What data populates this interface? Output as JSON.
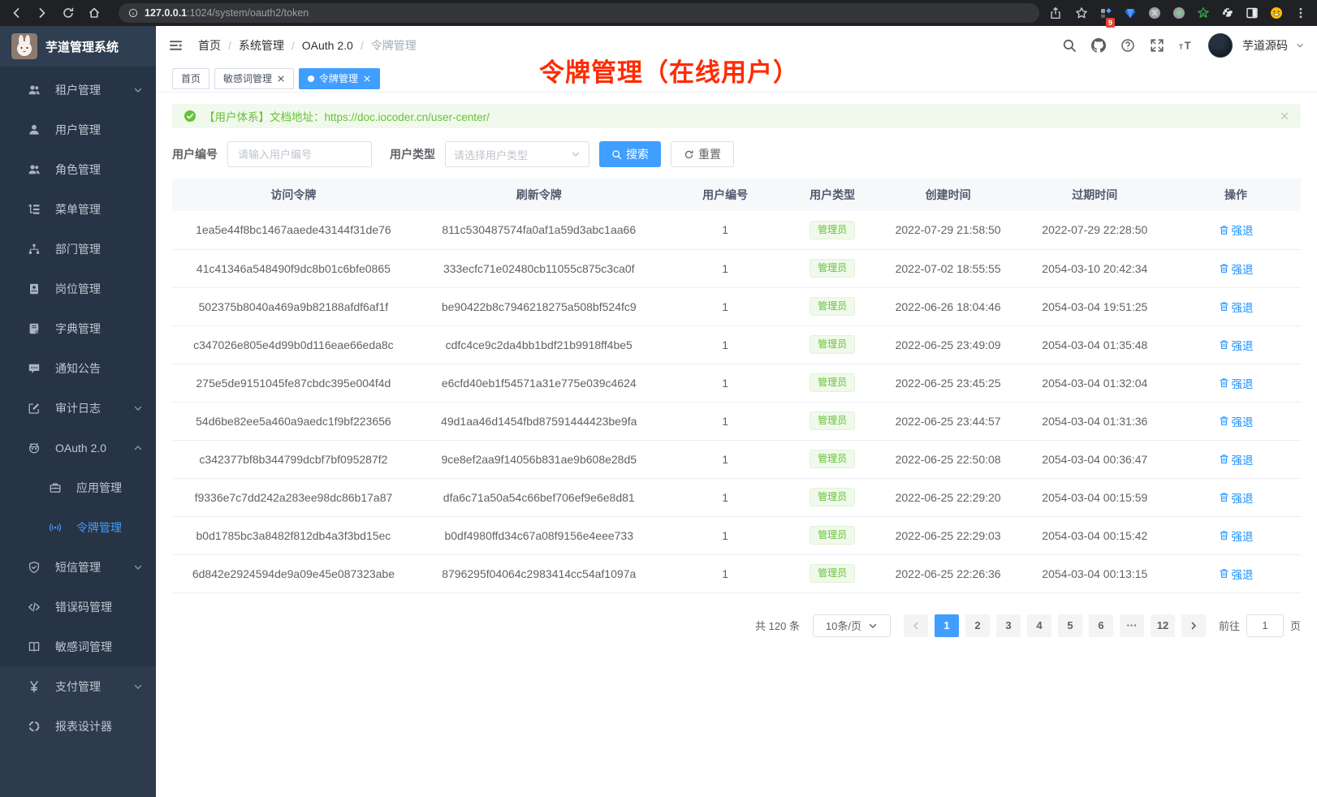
{
  "colors": {
    "accent": "#409eff",
    "success": "#67c23a",
    "link_blue": "#1890ff",
    "annotation_red": "#ff2b00",
    "sidebar_bg": "#273445"
  },
  "browser": {
    "url_host": "127.0.0.1",
    "url_path": ":1024/system/oauth2/token",
    "nav_icons": [
      "back-icon",
      "forward-icon",
      "reload-icon",
      "home-icon"
    ],
    "action_icons": [
      "share-icon",
      "star-icon"
    ],
    "extensions": [
      "extension-blocks-icon",
      "gem-icon",
      "command-circle-icon",
      "record-circle-icon",
      "green-star-icon",
      "puzzle-icon",
      "panel-icon",
      "smiley-icon"
    ],
    "extensions_badge": "9"
  },
  "sidebar": {
    "title": "芋道管理系统",
    "items": [
      {
        "label": "租户管理",
        "icon": "tenant-users-icon",
        "chevron": "chevron-down-icon"
      },
      {
        "label": "用户管理",
        "icon": "user-icon"
      },
      {
        "label": "角色管理",
        "icon": "role-users-icon"
      },
      {
        "label": "菜单管理",
        "icon": "menu-list-icon"
      },
      {
        "label": "部门管理",
        "icon": "dept-tree-icon"
      },
      {
        "label": "岗位管理",
        "icon": "post-badge-icon"
      },
      {
        "label": "字典管理",
        "icon": "dict-book-icon"
      },
      {
        "label": "通知公告",
        "icon": "notice-message-icon"
      },
      {
        "label": "审计日志",
        "icon": "audit-log-icon",
        "chevron": "chevron-down-icon"
      },
      {
        "label": "OAuth 2.0",
        "icon": "oauth-robot-icon",
        "chevron": "chevron-up-icon"
      },
      {
        "label": "应用管理",
        "icon": "app-briefcase-icon",
        "sub": true
      },
      {
        "label": "令牌管理",
        "icon": "token-broadcast-icon",
        "sub": true,
        "active": true
      },
      {
        "label": "短信管理",
        "icon": "sms-shield-icon",
        "chevron": "chevron-down-icon"
      },
      {
        "label": "错误码管理",
        "icon": "error-code-icon"
      },
      {
        "label": "敏感词管理",
        "icon": "sensitive-book-icon"
      },
      {
        "label": "支付管理",
        "icon": "payment-yen-icon",
        "chevron": "chevron-down-icon",
        "light": true
      },
      {
        "label": "报表设计器",
        "icon": "report-designer-icon",
        "light": true
      }
    ]
  },
  "navbar": {
    "breadcrumb": [
      "首页",
      "系统管理",
      "OAuth 2.0",
      "令牌管理"
    ],
    "action_icons": [
      "search-icon",
      "github-icon",
      "help-icon",
      "fullscreen-icon",
      "font-size-icon"
    ],
    "username": "芋道源码"
  },
  "tabs": [
    {
      "label": "首页"
    },
    {
      "label": "敏感词管理",
      "closable": true
    },
    {
      "label": "令牌管理",
      "closable": true,
      "active": true
    }
  ],
  "annotation": {
    "text": "令牌管理（在线用户）"
  },
  "alert": {
    "text": "【用户体系】文档地址：",
    "link": "https://doc.iocoder.cn/user-center/"
  },
  "filter": {
    "user_id_label": "用户编号",
    "user_id_placeholder": "请输入用户编号",
    "user_type_label": "用户类型",
    "user_type_placeholder": "请选择用户类型",
    "search_label": "搜索",
    "reset_label": "重置"
  },
  "table": {
    "headers": [
      "访问令牌",
      "刷新令牌",
      "用户编号",
      "用户类型",
      "创建时间",
      "过期时间",
      "操作"
    ],
    "rows": [
      {
        "access": "1ea5e44f8bc1467aaede43144f31de76",
        "refresh": "811c530487574fa0af1a59d3abc1aa66",
        "user_id": "1",
        "user_type": "管理员",
        "created": "2022-07-29 21:58:50",
        "expired": "2022-07-29 22:28:50",
        "action": "强退"
      },
      {
        "access": "41c41346a548490f9dc8b01c6bfe0865",
        "refresh": "333ecfc71e02480cb11055c875c3ca0f",
        "user_id": "1",
        "user_type": "管理员",
        "created": "2022-07-02 18:55:55",
        "expired": "2054-03-10 20:42:34",
        "action": "强退"
      },
      {
        "access": "502375b8040a469a9b82188afdf6af1f",
        "refresh": "be90422b8c7946218275a508bf524fc9",
        "user_id": "1",
        "user_type": "管理员",
        "created": "2022-06-26 18:04:46",
        "expired": "2054-03-04 19:51:25",
        "action": "强退"
      },
      {
        "access": "c347026e805e4d99b0d116eae66eda8c",
        "refresh": "cdfc4ce9c2da4bb1bdf21b9918ff4be5",
        "user_id": "1",
        "user_type": "管理员",
        "created": "2022-06-25 23:49:09",
        "expired": "2054-03-04 01:35:48",
        "action": "强退"
      },
      {
        "access": "275e5de9151045fe87cbdc395e004f4d",
        "refresh": "e6cfd40eb1f54571a31e775e039c4624",
        "user_id": "1",
        "user_type": "管理员",
        "created": "2022-06-25 23:45:25",
        "expired": "2054-03-04 01:32:04",
        "action": "强退"
      },
      {
        "access": "54d6be82ee5a460a9aedc1f9bf223656",
        "refresh": "49d1aa46d1454fbd87591444423be9fa",
        "user_id": "1",
        "user_type": "管理员",
        "created": "2022-06-25 23:44:57",
        "expired": "2054-03-04 01:31:36",
        "action": "强退"
      },
      {
        "access": "c342377bf8b344799dcbf7bf095287f2",
        "refresh": "9ce8ef2aa9f14056b831ae9b608e28d5",
        "user_id": "1",
        "user_type": "管理员",
        "created": "2022-06-25 22:50:08",
        "expired": "2054-03-04 00:36:47",
        "action": "强退"
      },
      {
        "access": "f9336e7c7dd242a283ee98dc86b17a87",
        "refresh": "dfa6c71a50a54c66bef706ef9e6e8d81",
        "user_id": "1",
        "user_type": "管理员",
        "created": "2022-06-25 22:29:20",
        "expired": "2054-03-04 00:15:59",
        "action": "强退"
      },
      {
        "access": "b0d1785bc3a8482f812db4a3f3bd15ec",
        "refresh": "b0df4980ffd34c67a08f9156e4eee733",
        "user_id": "1",
        "user_type": "管理员",
        "created": "2022-06-25 22:29:03",
        "expired": "2054-03-04 00:15:42",
        "action": "强退"
      },
      {
        "access": "6d842e2924594de9a09e45e087323abe",
        "refresh": "8796295f04064c2983414cc54af1097a",
        "user_id": "1",
        "user_type": "管理员",
        "created": "2022-06-25 22:26:36",
        "expired": "2054-03-04 00:13:15",
        "action": "强退"
      }
    ]
  },
  "pagination": {
    "total": "共 120 条",
    "page_size": "10条/页",
    "pages": [
      {
        "label": "1",
        "active": true
      },
      {
        "label": "2"
      },
      {
        "label": "3"
      },
      {
        "label": "4"
      },
      {
        "label": "5"
      },
      {
        "label": "6"
      },
      {
        "label": "···"
      },
      {
        "label": "12"
      }
    ],
    "goto_label": "前往",
    "goto_value": "1",
    "page_unit": "页"
  }
}
